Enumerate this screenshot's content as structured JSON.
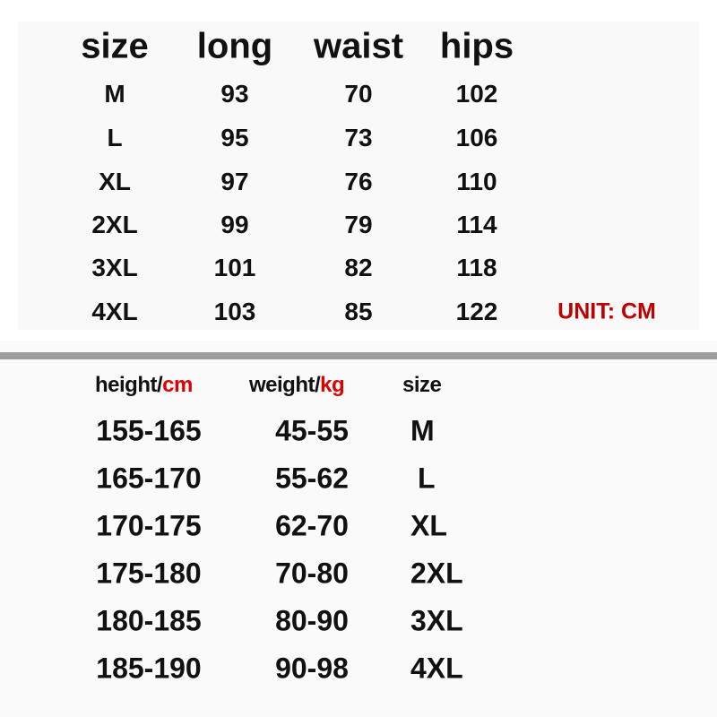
{
  "measurements": {
    "headers": [
      "size",
      "long",
      "waist",
      "hips"
    ],
    "rows": [
      [
        "M",
        "93",
        "70",
        "102"
      ],
      [
        "L",
        "95",
        "73",
        "106"
      ],
      [
        "XL",
        "97",
        "76",
        "110"
      ],
      [
        "2XL",
        "99",
        "79",
        "114"
      ],
      [
        "3XL",
        "101",
        "82",
        "118"
      ],
      [
        "4XL",
        "103",
        "85",
        "122"
      ]
    ],
    "unit_label": "UNIT: CM"
  },
  "fit_guide": {
    "headers": [
      {
        "label": "height/",
        "unit": "cm"
      },
      {
        "label": "weight/",
        "unit": "kg"
      },
      {
        "label": "size",
        "unit": ""
      }
    ],
    "rows": [
      [
        "155-165",
        "45-55",
        "M"
      ],
      [
        "165-170",
        "55-62",
        "L"
      ],
      [
        "170-175",
        "62-70",
        "XL"
      ],
      [
        "175-180",
        "70-80",
        "2XL"
      ],
      [
        "180-185",
        "80-90",
        "3XL"
      ],
      [
        "185-190",
        "90-98",
        "4XL"
      ]
    ]
  },
  "colors": {
    "accent_red": "#e00000",
    "unit_red": "#c00000",
    "divider": "#9e9c9c"
  }
}
